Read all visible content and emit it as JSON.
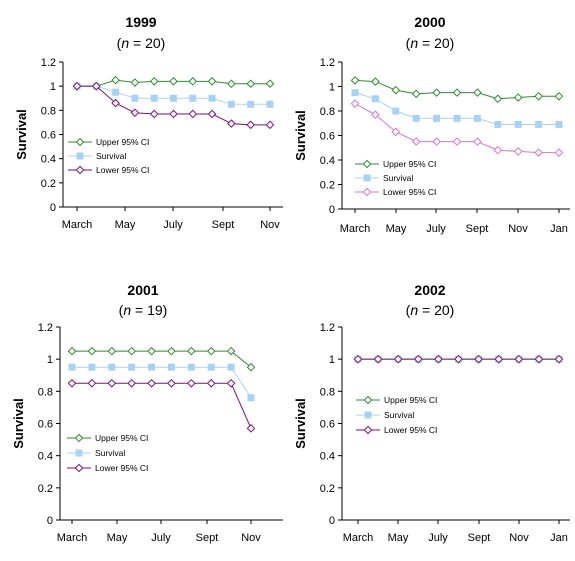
{
  "chart_data": [
    {
      "type": "line",
      "title": "1999",
      "subtitle": {
        "pre": "(",
        "italic": "n",
        "post": " = 20)"
      },
      "ylabel": "Survival",
      "ylim": [
        0,
        1.2
      ],
      "yticks": [
        0,
        0.2,
        0.4,
        0.6,
        0.8,
        1,
        1.2
      ],
      "ytick_labels": [
        "0",
        "0.2",
        "0.4",
        "0.6",
        "0.8",
        "1",
        "1.2"
      ],
      "x_tick_labels": [
        "March",
        "May",
        "July",
        "Sept",
        "Nov"
      ],
      "legend_position": "left",
      "series": [
        {
          "name": "Upper 95% CI",
          "color": "#2e8b2e",
          "marker": "diamond-open",
          "values": [
            1.0,
            1.0,
            1.05,
            1.03,
            1.04,
            1.04,
            1.04,
            1.04,
            1.02,
            1.02,
            1.02
          ]
        },
        {
          "name": "Survival",
          "color": "#a8d2f5",
          "marker": "square-filled",
          "values": [
            1.0,
            1.0,
            0.95,
            0.9,
            0.9,
            0.9,
            0.9,
            0.9,
            0.85,
            0.85,
            0.85
          ]
        },
        {
          "name": "Lower 95% CI",
          "color": "#7b0f7b",
          "marker": "diamond-open",
          "values": [
            1.0,
            1.0,
            0.86,
            0.78,
            0.77,
            0.77,
            0.77,
            0.77,
            0.69,
            0.68,
            0.68
          ]
        }
      ]
    },
    {
      "type": "line",
      "title": "2000",
      "subtitle": {
        "pre": "(",
        "italic": "n",
        "post": " = 20)"
      },
      "ylabel": "Survival",
      "ylim": [
        0,
        1.2
      ],
      "yticks": [
        0,
        0.2,
        0.4,
        0.6,
        0.8,
        1,
        1.2
      ],
      "ytick_labels": [
        "0",
        "0.2",
        "0.4",
        "0.6",
        "0.8",
        "1",
        "1.2"
      ],
      "x_tick_labels": [
        "March",
        "May",
        "July",
        "Sept",
        "Nov",
        "Jan"
      ],
      "legend_position": "left",
      "series": [
        {
          "name": "Upper 95% CI",
          "color": "#2e8b2e",
          "marker": "diamond-open",
          "values": [
            1.05,
            1.04,
            0.97,
            0.94,
            0.95,
            0.95,
            0.95,
            0.9,
            0.91,
            0.92,
            0.92
          ]
        },
        {
          "name": "Survival",
          "color": "#a8d2f5",
          "marker": "square-filled",
          "values": [
            0.95,
            0.9,
            0.8,
            0.74,
            0.74,
            0.74,
            0.74,
            0.69,
            0.69,
            0.69,
            0.69
          ]
        },
        {
          "name": "Lower 95% CI",
          "color": "#d873d8",
          "marker": "diamond-open",
          "values": [
            0.86,
            0.77,
            0.63,
            0.55,
            0.55,
            0.55,
            0.55,
            0.48,
            0.47,
            0.46,
            0.46
          ]
        }
      ]
    },
    {
      "type": "line",
      "title": "2001",
      "subtitle": {
        "pre": "(",
        "italic": "n",
        "post": " = 19)"
      },
      "ylabel": "Survival",
      "ylim": [
        0,
        1.2
      ],
      "yticks": [
        0,
        0.2,
        0.4,
        0.6,
        0.8,
        1,
        1.2
      ],
      "ytick_labels": [
        "0",
        "0.2",
        "0.4",
        "0.6",
        "0.8",
        "1",
        "1.2"
      ],
      "x_tick_labels": [
        "March",
        "May",
        "July",
        "Sept",
        "Nov"
      ],
      "legend_position": "lower-left",
      "series": [
        {
          "name": "Upper 95% CI",
          "color": "#2e8b2e",
          "marker": "diamond-open",
          "values": [
            1.05,
            1.05,
            1.05,
            1.05,
            1.05,
            1.05,
            1.05,
            1.05,
            1.05,
            0.95
          ]
        },
        {
          "name": "Survival",
          "color": "#a8d2f5",
          "marker": "square-filled",
          "values": [
            0.95,
            0.95,
            0.95,
            0.95,
            0.95,
            0.95,
            0.95,
            0.95,
            0.95,
            0.76
          ]
        },
        {
          "name": "Lower 95% CI",
          "color": "#7b0f7b",
          "marker": "diamond-open",
          "values": [
            0.85,
            0.85,
            0.85,
            0.85,
            0.85,
            0.85,
            0.85,
            0.85,
            0.85,
            0.57
          ]
        }
      ]
    },
    {
      "type": "line",
      "title": "2002",
      "subtitle": {
        "pre": "(",
        "italic": "n",
        "post": " = 20)"
      },
      "ylabel": "Survival",
      "ylim": [
        0,
        1.2
      ],
      "yticks": [
        0,
        0.2,
        0.4,
        0.6,
        0.8,
        1,
        1.2
      ],
      "ytick_labels": [
        "0",
        "0.2",
        "0.4",
        "0.6",
        "0.8",
        "1",
        "1.2"
      ],
      "x_tick_labels": [
        "March",
        "May",
        "July",
        "Sept",
        "Nov",
        "Jan"
      ],
      "legend_position": "left",
      "series": [
        {
          "name": "Upper 95% CI",
          "color": "#2e8b2e",
          "marker": "diamond-open",
          "values": [
            1.0,
            1.0,
            1.0,
            1.0,
            1.0,
            1.0,
            1.0,
            1.0,
            1.0,
            1.0,
            1.0
          ]
        },
        {
          "name": "Survival",
          "color": "#a8d2f5",
          "marker": "square-filled",
          "values": [
            1.0,
            1.0,
            1.0,
            1.0,
            1.0,
            1.0,
            1.0,
            1.0,
            1.0,
            1.0,
            1.0
          ]
        },
        {
          "name": "Lower 95% CI",
          "color": "#7b0f7b",
          "marker": "diamond-open",
          "values": [
            1.0,
            1.0,
            1.0,
            1.0,
            1.0,
            1.0,
            1.0,
            1.0,
            1.0,
            1.0,
            1.0
          ]
        }
      ]
    }
  ]
}
